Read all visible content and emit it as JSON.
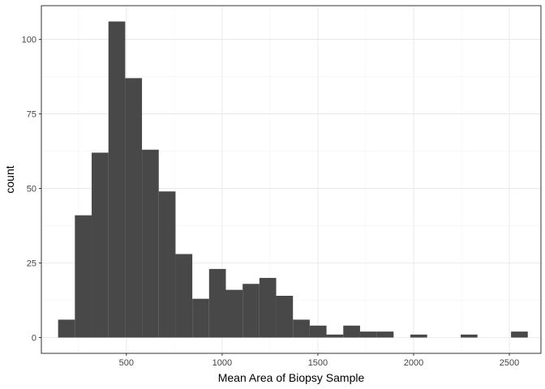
{
  "chart_data": {
    "type": "bar",
    "title": "",
    "xlabel": "Mean Area of Biopsy Sample",
    "ylabel": "count",
    "xlim": [
      56,
      2665
    ],
    "ylim": [
      -5.3,
      111.3
    ],
    "x_ticks": [
      500,
      1000,
      1500,
      2000,
      2500
    ],
    "y_ticks": [
      0,
      25,
      50,
      75,
      100
    ],
    "bin_width": 87.6,
    "bins": [
      {
        "start": 143.5,
        "count": 6
      },
      {
        "start": 231.1,
        "count": 41
      },
      {
        "start": 318.7,
        "count": 62
      },
      {
        "start": 406.3,
        "count": 106
      },
      {
        "start": 493.9,
        "count": 87
      },
      {
        "start": 581.5,
        "count": 63
      },
      {
        "start": 669.1,
        "count": 49
      },
      {
        "start": 756.7,
        "count": 28
      },
      {
        "start": 844.3,
        "count": 13
      },
      {
        "start": 931.9,
        "count": 23
      },
      {
        "start": 1019.5,
        "count": 16
      },
      {
        "start": 1107.1,
        "count": 18
      },
      {
        "start": 1194.7,
        "count": 20
      },
      {
        "start": 1282.3,
        "count": 14
      },
      {
        "start": 1369.9,
        "count": 6
      },
      {
        "start": 1457.5,
        "count": 4
      },
      {
        "start": 1545.1,
        "count": 1
      },
      {
        "start": 1632.7,
        "count": 4
      },
      {
        "start": 1720.3,
        "count": 2
      },
      {
        "start": 1807.9,
        "count": 2
      },
      {
        "start": 1895.5,
        "count": 0
      },
      {
        "start": 1983.1,
        "count": 1
      },
      {
        "start": 2070.7,
        "count": 0
      },
      {
        "start": 2158.3,
        "count": 0
      },
      {
        "start": 2245.9,
        "count": 1
      },
      {
        "start": 2333.5,
        "count": 0
      },
      {
        "start": 2421.1,
        "count": 0
      },
      {
        "start": 2508.7,
        "count": 2
      }
    ],
    "grid": true,
    "bar_color": "#484848",
    "grid_color": "#e6e6e6",
    "minor_grid_color": "#f2f2f2",
    "panel_border_color": "#333333"
  }
}
